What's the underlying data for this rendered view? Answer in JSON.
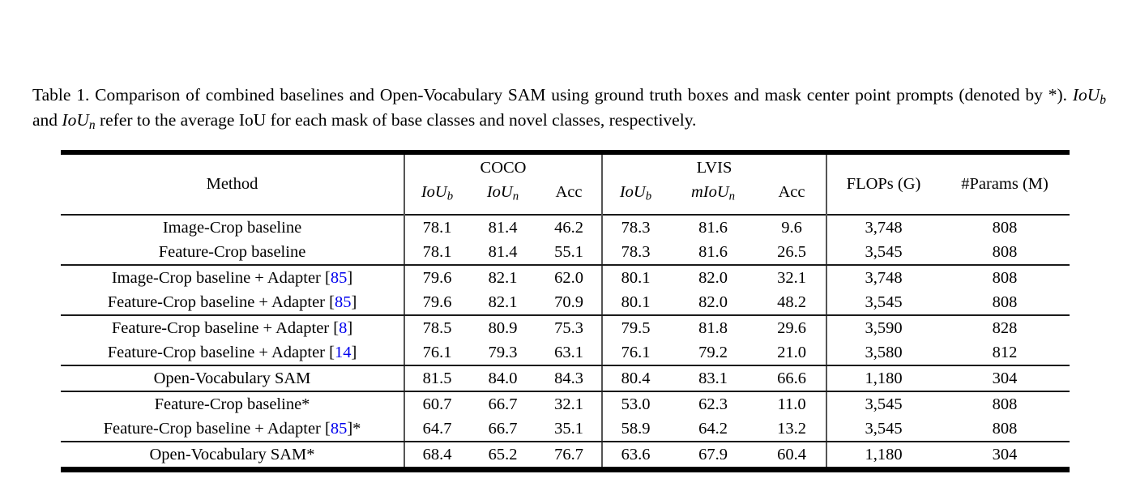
{
  "colors": {
    "citation": "#0000EE",
    "text": "#000000",
    "background": "#ffffff"
  },
  "caption": {
    "part1": "Table 1. Comparison of combined baselines and Open-Vocabulary SAM using ground truth boxes and mask center point prompts (denoted by *). ",
    "math1": {
      "base": "IoU",
      "sub": "b"
    },
    "mid": " and ",
    "math2": {
      "base": "IoU",
      "sub": "n"
    },
    "part2": " refer to the average IoU for each mask of base classes and novel classes, respectively."
  },
  "table": {
    "header": {
      "method": "Method",
      "coco": {
        "label": "COCO",
        "iou_b": {
          "base": "IoU",
          "sub": "b"
        },
        "iou_n": {
          "base": "IoU",
          "sub": "n"
        },
        "acc": "Acc"
      },
      "lvis": {
        "label": "LVIS",
        "iou_b": {
          "base": "IoU",
          "sub": "b"
        },
        "miou_n": {
          "base": "mIoU",
          "sub": "n"
        },
        "acc": "Acc"
      },
      "flops": "FLOPs (G)",
      "params": "#Params (M)"
    },
    "rows": [
      {
        "method": {
          "pre": "Image-Crop baseline",
          "cite": "",
          "post": ""
        },
        "values": [
          "78.1",
          "81.4",
          "46.2",
          "78.3",
          "81.6",
          "9.6",
          "3,748",
          "808"
        ],
        "rule_after": false
      },
      {
        "method": {
          "pre": "Feature-Crop baseline",
          "cite": "",
          "post": ""
        },
        "values": [
          "78.1",
          "81.4",
          "55.1",
          "78.3",
          "81.6",
          "26.5",
          "3,545",
          "808"
        ],
        "rule_after": true
      },
      {
        "method": {
          "pre": "Image-Crop baseline + Adapter [",
          "cite": "85",
          "post": "]"
        },
        "values": [
          "79.6",
          "82.1",
          "62.0",
          "80.1",
          "82.0",
          "32.1",
          "3,748",
          "808"
        ],
        "rule_after": false
      },
      {
        "method": {
          "pre": "Feature-Crop baseline + Adapter [",
          "cite": "85",
          "post": "]"
        },
        "values": [
          "79.6",
          "82.1",
          "70.9",
          "80.1",
          "82.0",
          "48.2",
          "3,545",
          "808"
        ],
        "rule_after": true
      },
      {
        "method": {
          "pre": "Feature-Crop baseline + Adapter [",
          "cite": "8",
          "post": "]"
        },
        "values": [
          "78.5",
          "80.9",
          "75.3",
          "79.5",
          "81.8",
          "29.6",
          "3,590",
          "828"
        ],
        "rule_after": false
      },
      {
        "method": {
          "pre": "Feature-Crop baseline + Adapter [",
          "cite": "14",
          "post": "]"
        },
        "values": [
          "76.1",
          "79.3",
          "63.1",
          "76.1",
          "79.2",
          "21.0",
          "3,580",
          "812"
        ],
        "rule_after": true
      },
      {
        "method": {
          "pre": "Open-Vocabulary SAM",
          "cite": "",
          "post": ""
        },
        "values": [
          "81.5",
          "84.0",
          "84.3",
          "80.4",
          "83.1",
          "66.6",
          "1,180",
          "304"
        ],
        "rule_after": true
      },
      {
        "method": {
          "pre": "Feature-Crop baseline*",
          "cite": "",
          "post": ""
        },
        "values": [
          "60.7",
          "66.7",
          "32.1",
          "53.0",
          "62.3",
          "11.0",
          "3,545",
          "808"
        ],
        "rule_after": false
      },
      {
        "method": {
          "pre": "Feature-Crop baseline + Adapter [",
          "cite": "85",
          "post": "]*"
        },
        "values": [
          "64.7",
          "66.7",
          "35.1",
          "58.9",
          "64.2",
          "13.2",
          "3,545",
          "808"
        ],
        "rule_after": true
      },
      {
        "method": {
          "pre": "Open-Vocabulary SAM*",
          "cite": "",
          "post": ""
        },
        "values": [
          "68.4",
          "65.2",
          "76.7",
          "63.6",
          "67.9",
          "60.4",
          "1,180",
          "304"
        ],
        "rule_after": false
      }
    ]
  }
}
